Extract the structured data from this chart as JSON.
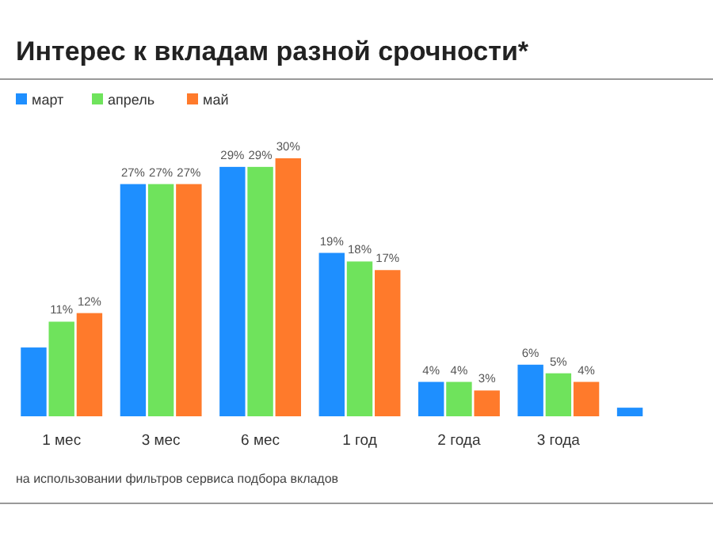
{
  "chart_data": {
    "type": "bar",
    "title": "Интерес к вкладам разной срочности*",
    "categories": [
      "1 мес",
      "3 мес",
      "6 мес",
      "1 год",
      "2 года",
      "3 года",
      null
    ],
    "series": [
      {
        "name": "март",
        "color": "#1e8fff",
        "values": [
          8,
          27,
          29,
          19,
          4,
          6,
          1
        ],
        "value_labels": [
          null,
          "27%",
          "29%",
          "19%",
          "4%",
          "6%",
          null
        ]
      },
      {
        "name": "апрель",
        "color": "#6fe35c",
        "values": [
          11,
          27,
          29,
          18,
          4,
          5,
          null
        ],
        "value_labels": [
          "11%",
          "27%",
          "29%",
          "18%",
          "4%",
          "5%",
          null
        ]
      },
      {
        "name": "май",
        "color": "#ff7a2b",
        "values": [
          12,
          27,
          30,
          17,
          3,
          4,
          null
        ],
        "value_labels": [
          "12%",
          "27%",
          "30%",
          "17%",
          "3%",
          "4%",
          null
        ]
      }
    ],
    "legend": "top left",
    "annotations": [
      "на использовании фильтров сервиса подбора вкладов"
    ]
  }
}
